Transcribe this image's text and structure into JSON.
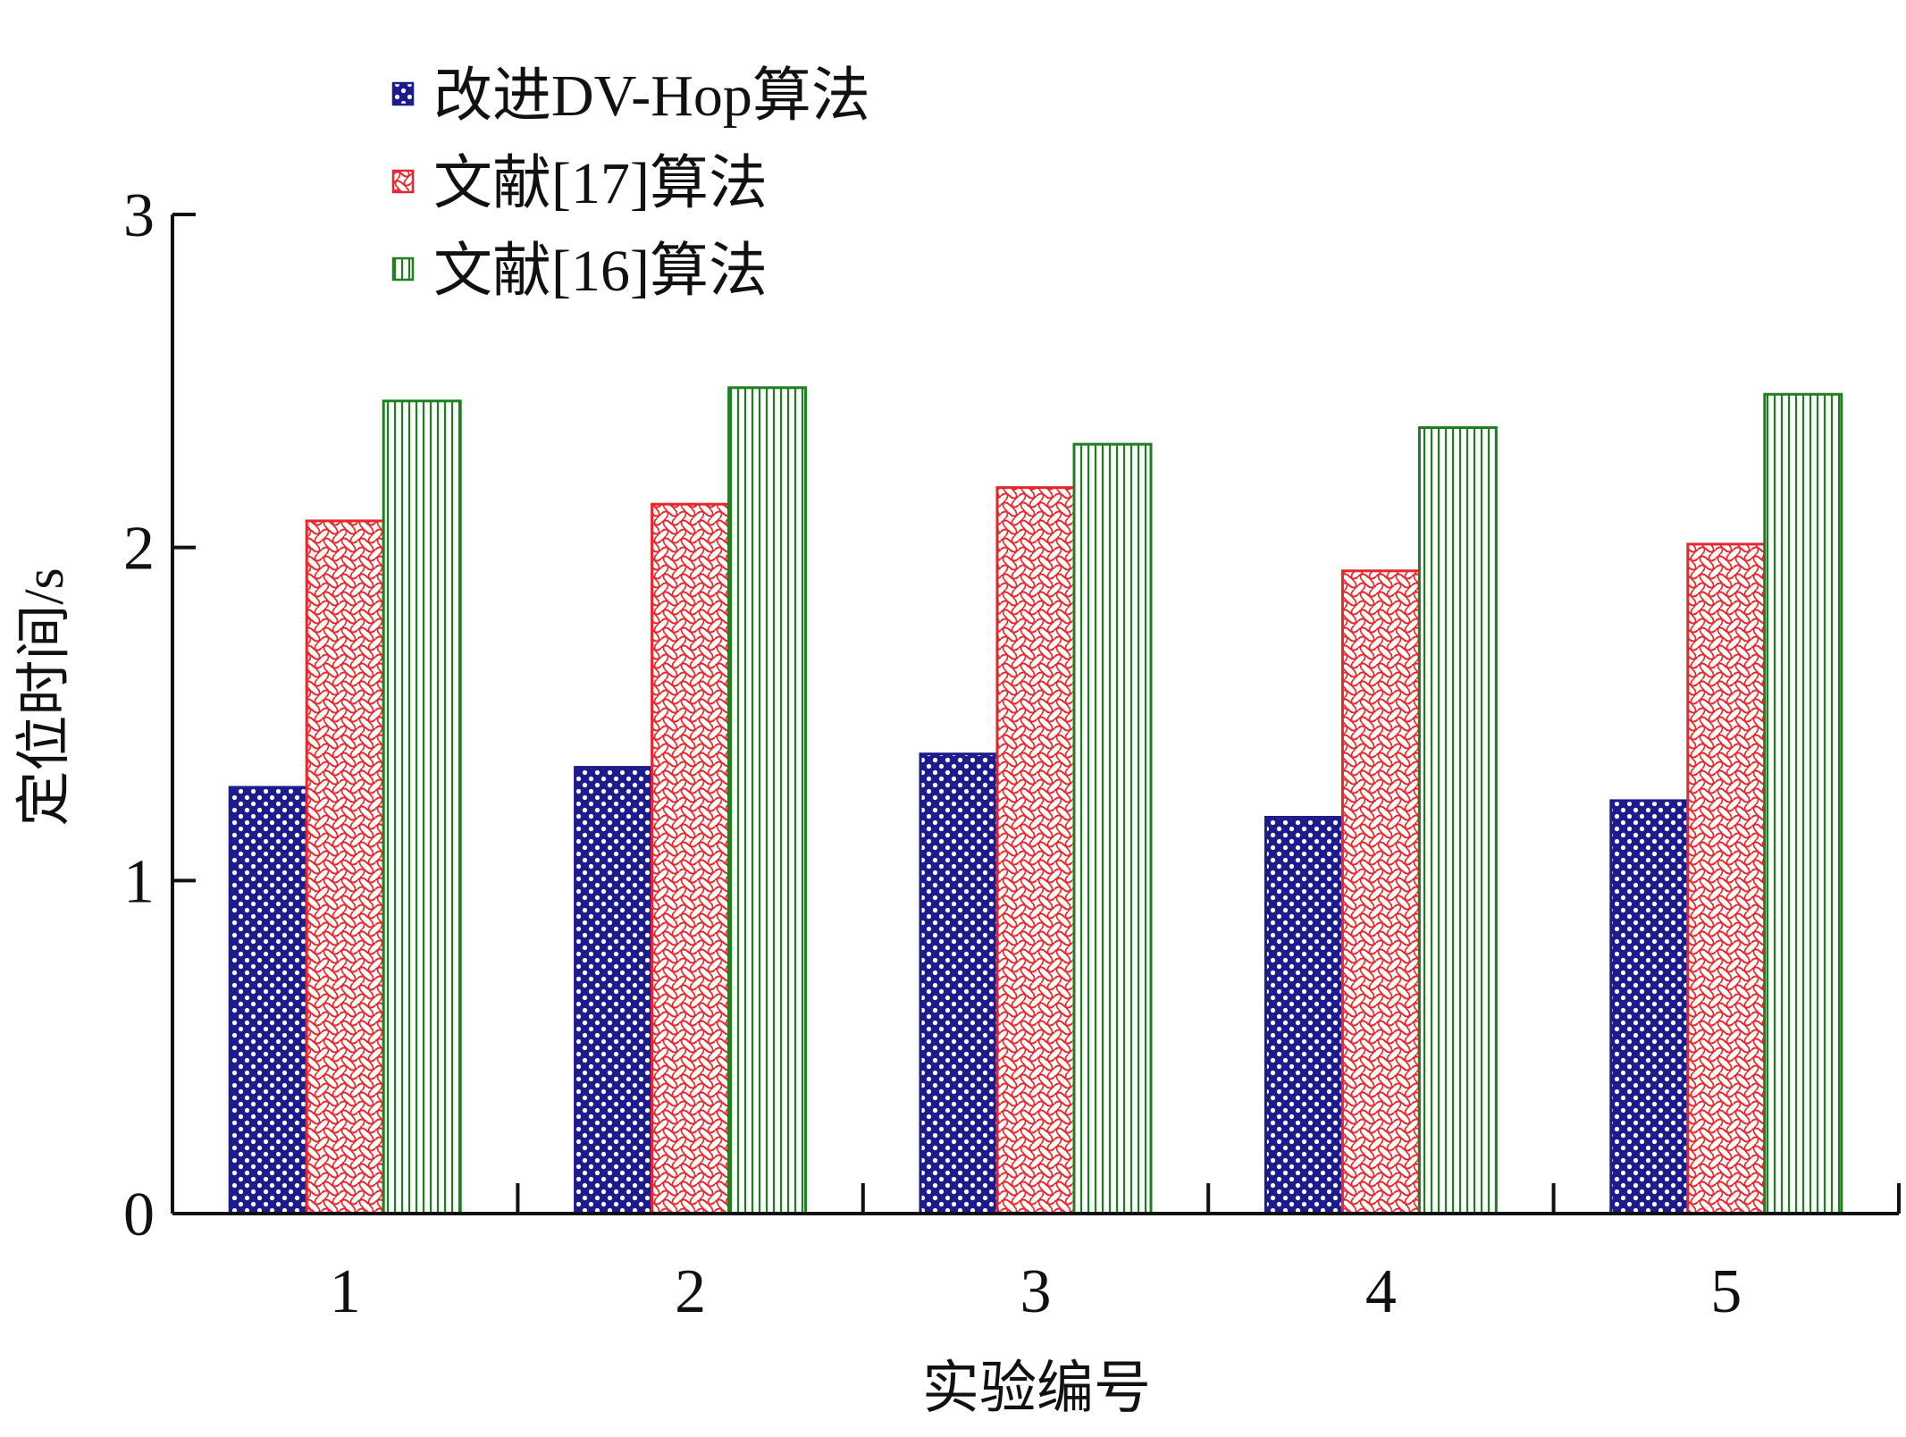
{
  "chart_data": {
    "type": "bar",
    "categories": [
      "1",
      "2",
      "3",
      "4",
      "5"
    ],
    "series": [
      {
        "name": "改进DV-Hop算法",
        "values": [
          1.28,
          1.34,
          1.38,
          1.19,
          1.24
        ],
        "color": "#1c1c8c",
        "pattern": "dots"
      },
      {
        "name": "文献[17]算法",
        "values": [
          2.08,
          2.13,
          2.18,
          1.93,
          2.01
        ],
        "color": "#e8262b",
        "pattern": "waves"
      },
      {
        "name": "文献[16]算法",
        "values": [
          2.44,
          2.48,
          2.31,
          2.36,
          2.46
        ],
        "color": "#1f7f1f",
        "pattern": "vlines"
      }
    ],
    "xlabel": "实验编号",
    "ylabel": "定位时间/s",
    "ylim": [
      0,
      3
    ],
    "yticks": [
      "0",
      "1",
      "2",
      "3"
    ],
    "grid": false,
    "legend_position": "top-left"
  }
}
